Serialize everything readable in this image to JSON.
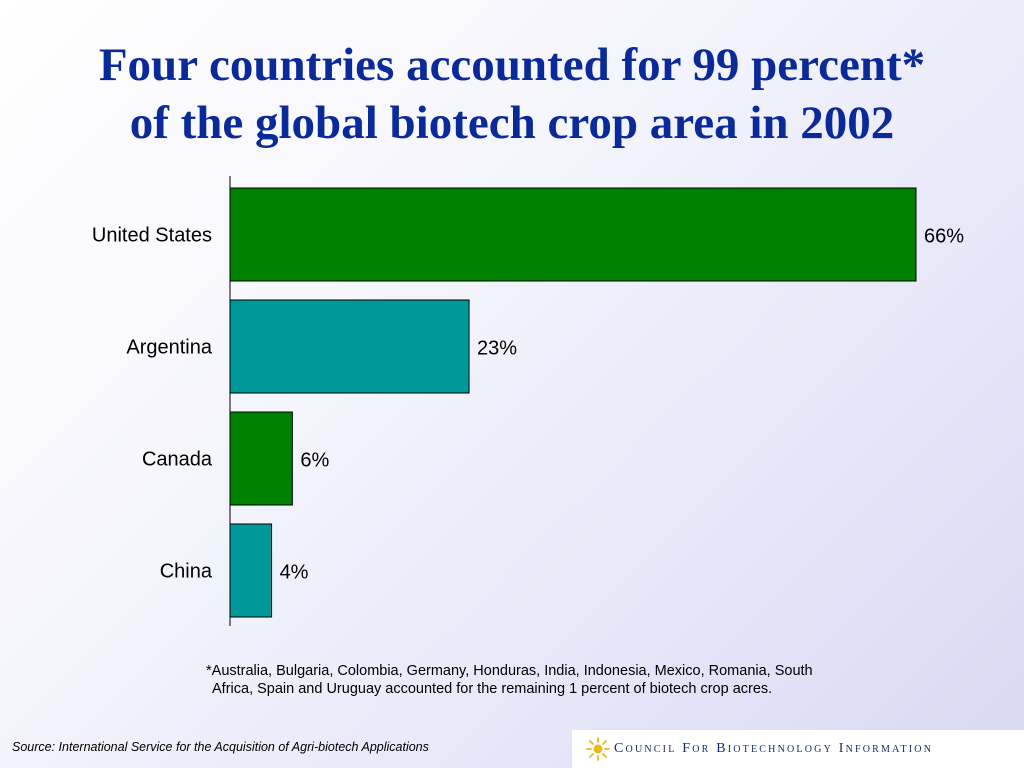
{
  "title": {
    "line1": "Four countries accounted for 99 percent*",
    "line2": "of the global biotech crop area in 2002"
  },
  "chart_data": {
    "type": "bar",
    "orientation": "horizontal",
    "categories": [
      "United States",
      "Argentina",
      "Canada",
      "China"
    ],
    "values": [
      66,
      23,
      6,
      4
    ],
    "data_labels": [
      "66%",
      "23%",
      "6%",
      "4%"
    ],
    "colors": [
      "#008000",
      "#009999",
      "#008000",
      "#009999"
    ],
    "xlim": [
      0,
      66
    ],
    "grid": false,
    "legend": "none"
  },
  "footnote": {
    "line1": "*Australia, Bulgaria, Colombia, Germany, Honduras, India, Indonesia, Mexico, Romania, South",
    "line2": "Africa, Spain and Uruguay accounted for the remaining 1 percent of biotech crop acres."
  },
  "source": "Source: International Service for the Acquisition of Agri-biotech Applications",
  "logo": {
    "text": "Council For Biotechnology Information",
    "icon": "sun-icon",
    "color": "#e8b820"
  }
}
